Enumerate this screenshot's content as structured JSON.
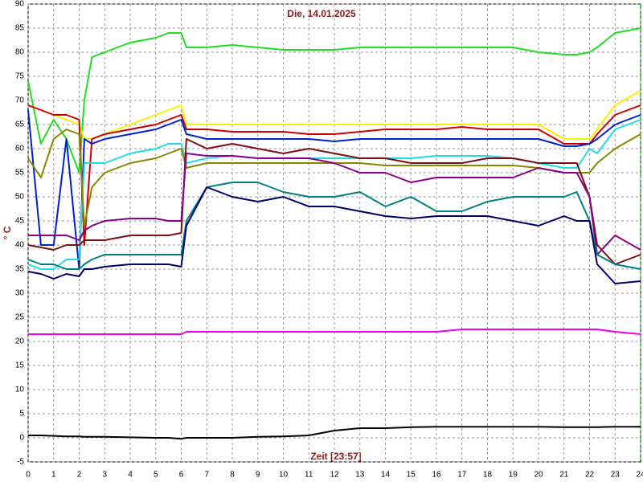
{
  "chart_data": {
    "type": "line",
    "title": "Die, 14.01.2025",
    "x_label": "Zeit [23:57]",
    "y_label": "° C",
    "x": [
      0,
      0.5,
      1,
      1.5,
      2,
      2.2,
      2.5,
      3,
      4,
      5,
      5.5,
      6,
      6.2,
      7,
      8,
      9,
      10,
      11,
      12,
      13,
      14,
      15,
      16,
      17,
      18,
      19,
      20,
      21,
      21.5,
      22,
      22.3,
      23,
      24
    ],
    "series": [
      {
        "color": "#22dd22",
        "values": [
          74,
          61,
          66,
          62,
          55,
          70,
          79,
          80,
          82,
          83,
          84,
          84,
          81,
          81,
          81.5,
          81,
          80.5,
          80.5,
          80.5,
          81,
          81,
          81,
          81,
          81,
          81,
          81,
          80,
          79.5,
          79.5,
          80,
          81,
          84,
          85
        ]
      },
      {
        "color": "#ffee00",
        "values": [
          69,
          68,
          67,
          66,
          65,
          62,
          62,
          63,
          65,
          67,
          68,
          69,
          65,
          65,
          65,
          65,
          65,
          65,
          65,
          65,
          65,
          65,
          65,
          65,
          65,
          65,
          65,
          62,
          62,
          62,
          64,
          69,
          72
        ]
      },
      {
        "color": "#cc0000",
        "values": [
          69,
          68,
          67,
          67,
          66,
          40,
          62,
          63,
          64,
          65,
          66,
          67,
          64,
          64,
          63.5,
          63.5,
          63.5,
          63,
          63,
          63.5,
          64,
          64,
          64,
          64.5,
          64,
          64,
          64,
          61,
          61,
          61,
          63,
          67,
          69
        ]
      },
      {
        "color": "#0022cc",
        "values": [
          68,
          40,
          40,
          62,
          35,
          62,
          61,
          62,
          63,
          64,
          65,
          66,
          63,
          62,
          62,
          62,
          62,
          62,
          61.5,
          62,
          62,
          62,
          62,
          62,
          62,
          62,
          62,
          60.5,
          60.5,
          61,
          62,
          65,
          67
        ]
      },
      {
        "color": "#22dddd",
        "values": [
          36,
          35,
          35,
          37,
          37,
          57,
          57,
          57,
          59,
          60,
          61,
          61,
          57,
          58,
          58.5,
          58,
          58,
          58,
          58,
          58,
          58,
          58,
          58.5,
          58.5,
          58.5,
          58,
          57,
          56,
          56,
          60,
          59,
          64,
          66
        ]
      },
      {
        "color": "#888800",
        "values": [
          58,
          54,
          62,
          64,
          63,
          44,
          52,
          55,
          57,
          58,
          59,
          60,
          56,
          57,
          57,
          57,
          57,
          57,
          57,
          57,
          56.5,
          56.5,
          56.5,
          56.5,
          56.5,
          56.5,
          56,
          55,
          55,
          55,
          57,
          60,
          63
        ]
      },
      {
        "color": "#7a1010",
        "values": [
          40,
          39.5,
          39,
          40,
          40,
          41,
          41,
          41,
          42,
          42,
          42,
          42.5,
          62,
          60,
          61,
          60,
          59,
          60,
          59,
          58,
          58,
          57,
          57,
          57,
          58,
          58,
          57,
          57,
          57,
          50,
          40,
          36,
          38
        ]
      },
      {
        "color": "#880088",
        "values": [
          42,
          42,
          42,
          42,
          41,
          43,
          44,
          45,
          45.5,
          45.5,
          45,
          45,
          59,
          58.5,
          58.5,
          58,
          58,
          58,
          57,
          55,
          55,
          53,
          54,
          54,
          54,
          54,
          56,
          55,
          55,
          50,
          38,
          42,
          39
        ]
      },
      {
        "color": "#008080",
        "values": [
          37,
          36,
          36,
          35,
          35,
          36,
          37,
          38,
          38,
          38,
          38,
          38,
          45,
          52,
          53,
          53,
          51,
          50,
          50,
          51,
          48,
          50,
          47,
          47,
          49,
          50,
          50,
          50,
          51,
          45,
          38,
          36,
          35
        ]
      },
      {
        "color": "#000066",
        "values": [
          34.5,
          34,
          33,
          34,
          33.5,
          35,
          35,
          35.5,
          36,
          36,
          36,
          35.5,
          44,
          52,
          50,
          49,
          50,
          48,
          48,
          47,
          46,
          45.5,
          46,
          46,
          46,
          45,
          44,
          46,
          45,
          45,
          36,
          32,
          32.5
        ]
      },
      {
        "color": "#ee00ee",
        "values": [
          21.5,
          21.5,
          21.5,
          21.5,
          21.5,
          21.5,
          21.5,
          21.5,
          21.5,
          21.5,
          21.5,
          21.5,
          22,
          22,
          22,
          22,
          22,
          22,
          22,
          22,
          22,
          22,
          22,
          22.5,
          22.5,
          22.5,
          22.5,
          22.5,
          22.5,
          22.5,
          22.5,
          22,
          21.5
        ]
      },
      {
        "color": "#000000",
        "values": [
          0.5,
          0.5,
          0.4,
          0.3,
          0.3,
          0.2,
          0.2,
          0.2,
          0.1,
          0,
          0,
          -0.2,
          0,
          0,
          0,
          0.2,
          0.3,
          0.5,
          1.5,
          2,
          2,
          2.2,
          2.3,
          2.3,
          2.3,
          2.3,
          2.3,
          2.2,
          2.2,
          2.2,
          2.2,
          2.3,
          2.3
        ]
      }
    ],
    "xlim": [
      0,
      24
    ],
    "xticks": [
      0,
      1,
      2,
      3,
      4,
      5,
      6,
      7,
      8,
      9,
      10,
      11,
      12,
      13,
      14,
      15,
      16,
      17,
      18,
      19,
      20,
      21,
      22,
      23,
      24
    ],
    "ylim": [
      -5,
      90
    ],
    "yticks": [
      -5,
      0,
      5,
      10,
      15,
      20,
      25,
      30,
      35,
      40,
      45,
      50,
      55,
      60,
      65,
      70,
      75,
      80,
      85,
      90
    ],
    "grid": true
  }
}
